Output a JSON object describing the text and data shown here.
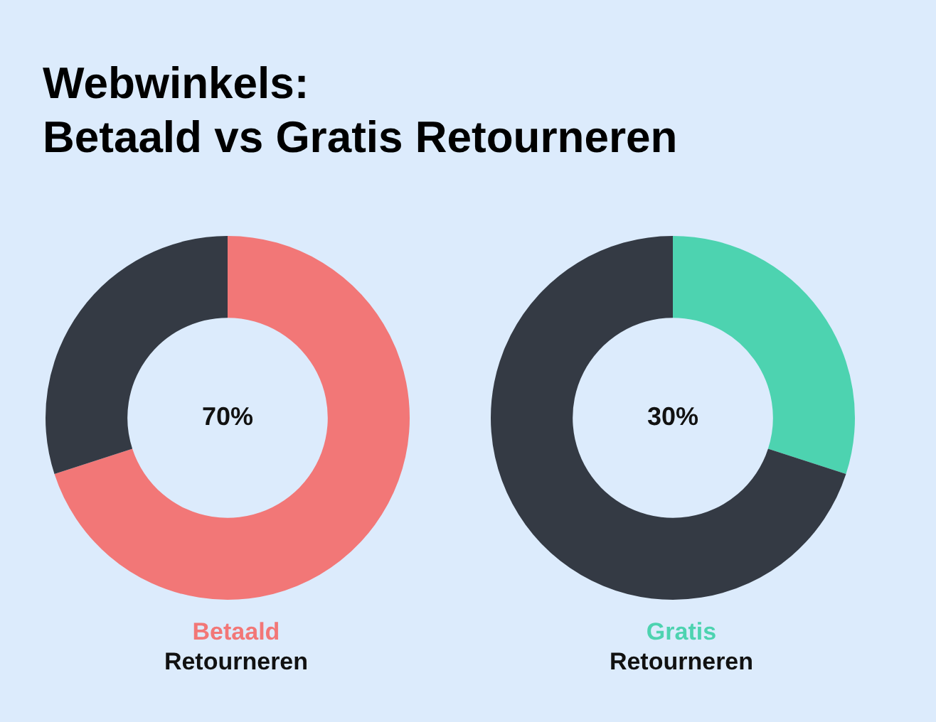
{
  "chart_data": [
    {
      "type": "donut",
      "title": "Webwinkels:\nBetaald vs Gratis Retourneren",
      "xlabel": "Betaald Retourneren",
      "categories": [
        null,
        null
      ],
      "values": [
        70,
        30
      ],
      "colors": [
        "#f27777",
        "#343a44"
      ],
      "value_labels": [
        "70%",
        null
      ]
    },
    {
      "type": "donut",
      "xlabel": "Gratis Retourneren",
      "categories": [
        null,
        null
      ],
      "values": [
        30,
        70
      ],
      "colors": [
        "#4dd3b0",
        "#343a44"
      ],
      "value_labels": [
        "30%",
        null
      ]
    }
  ]
}
